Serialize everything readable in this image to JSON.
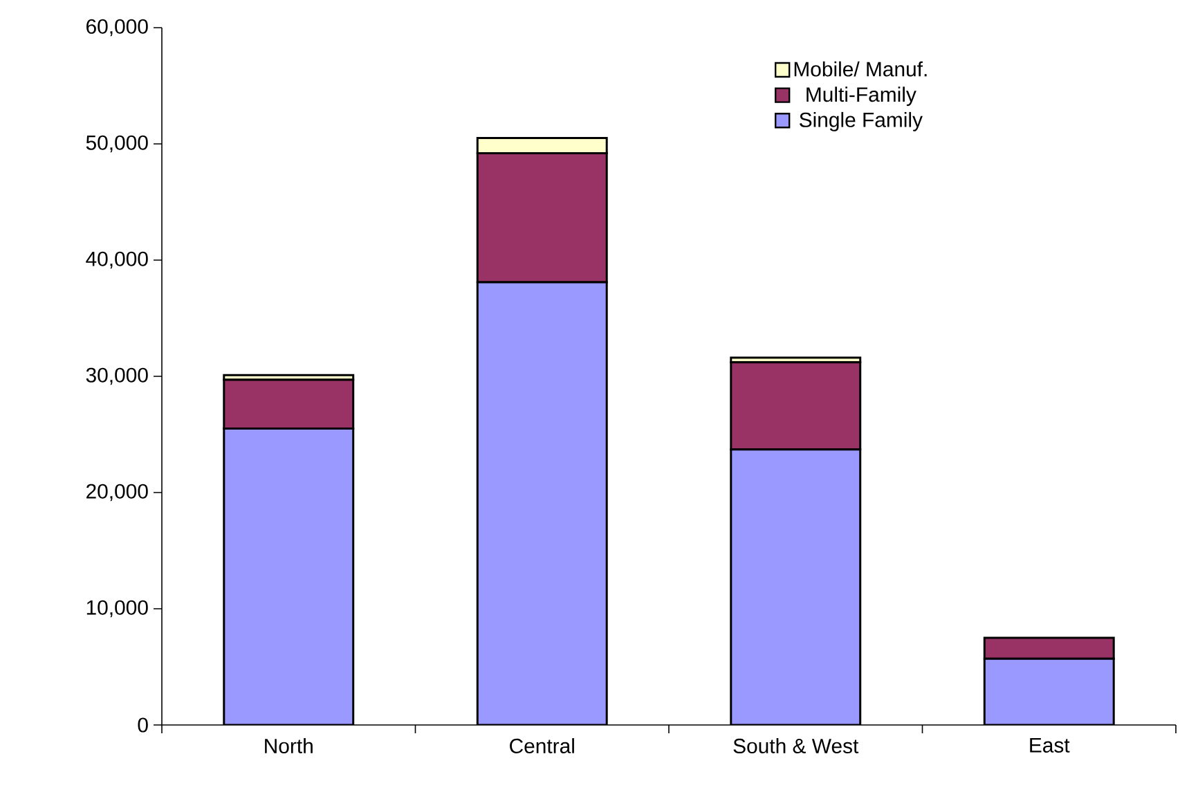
{
  "chart_data": {
    "type": "bar",
    "stacked": true,
    "categories": [
      "North",
      "Central",
      "South & West",
      "East"
    ],
    "series": [
      {
        "name": "Single Family",
        "color": "#9999ff",
        "values": [
          25500,
          38100,
          23700,
          5700
        ]
      },
      {
        "name": "Multi-Family",
        "color": "#993366",
        "values": [
          4200,
          11100,
          7500,
          1800
        ]
      },
      {
        "name": "Mobile/ Manuf.",
        "color": "#ffffcc",
        "values": [
          400,
          1300,
          400,
          0
        ]
      }
    ],
    "ylim": [
      0,
      60000
    ],
    "yticks": [
      0,
      {
        "value": 10000,
        "label": "10,000"
      },
      {
        "value": 20000,
        "label": "20,000"
      },
      {
        "value": 30000,
        "label": "30,000"
      },
      {
        "value": 40000,
        "label": "40,000"
      },
      {
        "value": 50000,
        "label": "50,000"
      },
      {
        "value": 60000,
        "label": "60,000"
      }
    ],
    "legend": "top right",
    "grid": false
  }
}
